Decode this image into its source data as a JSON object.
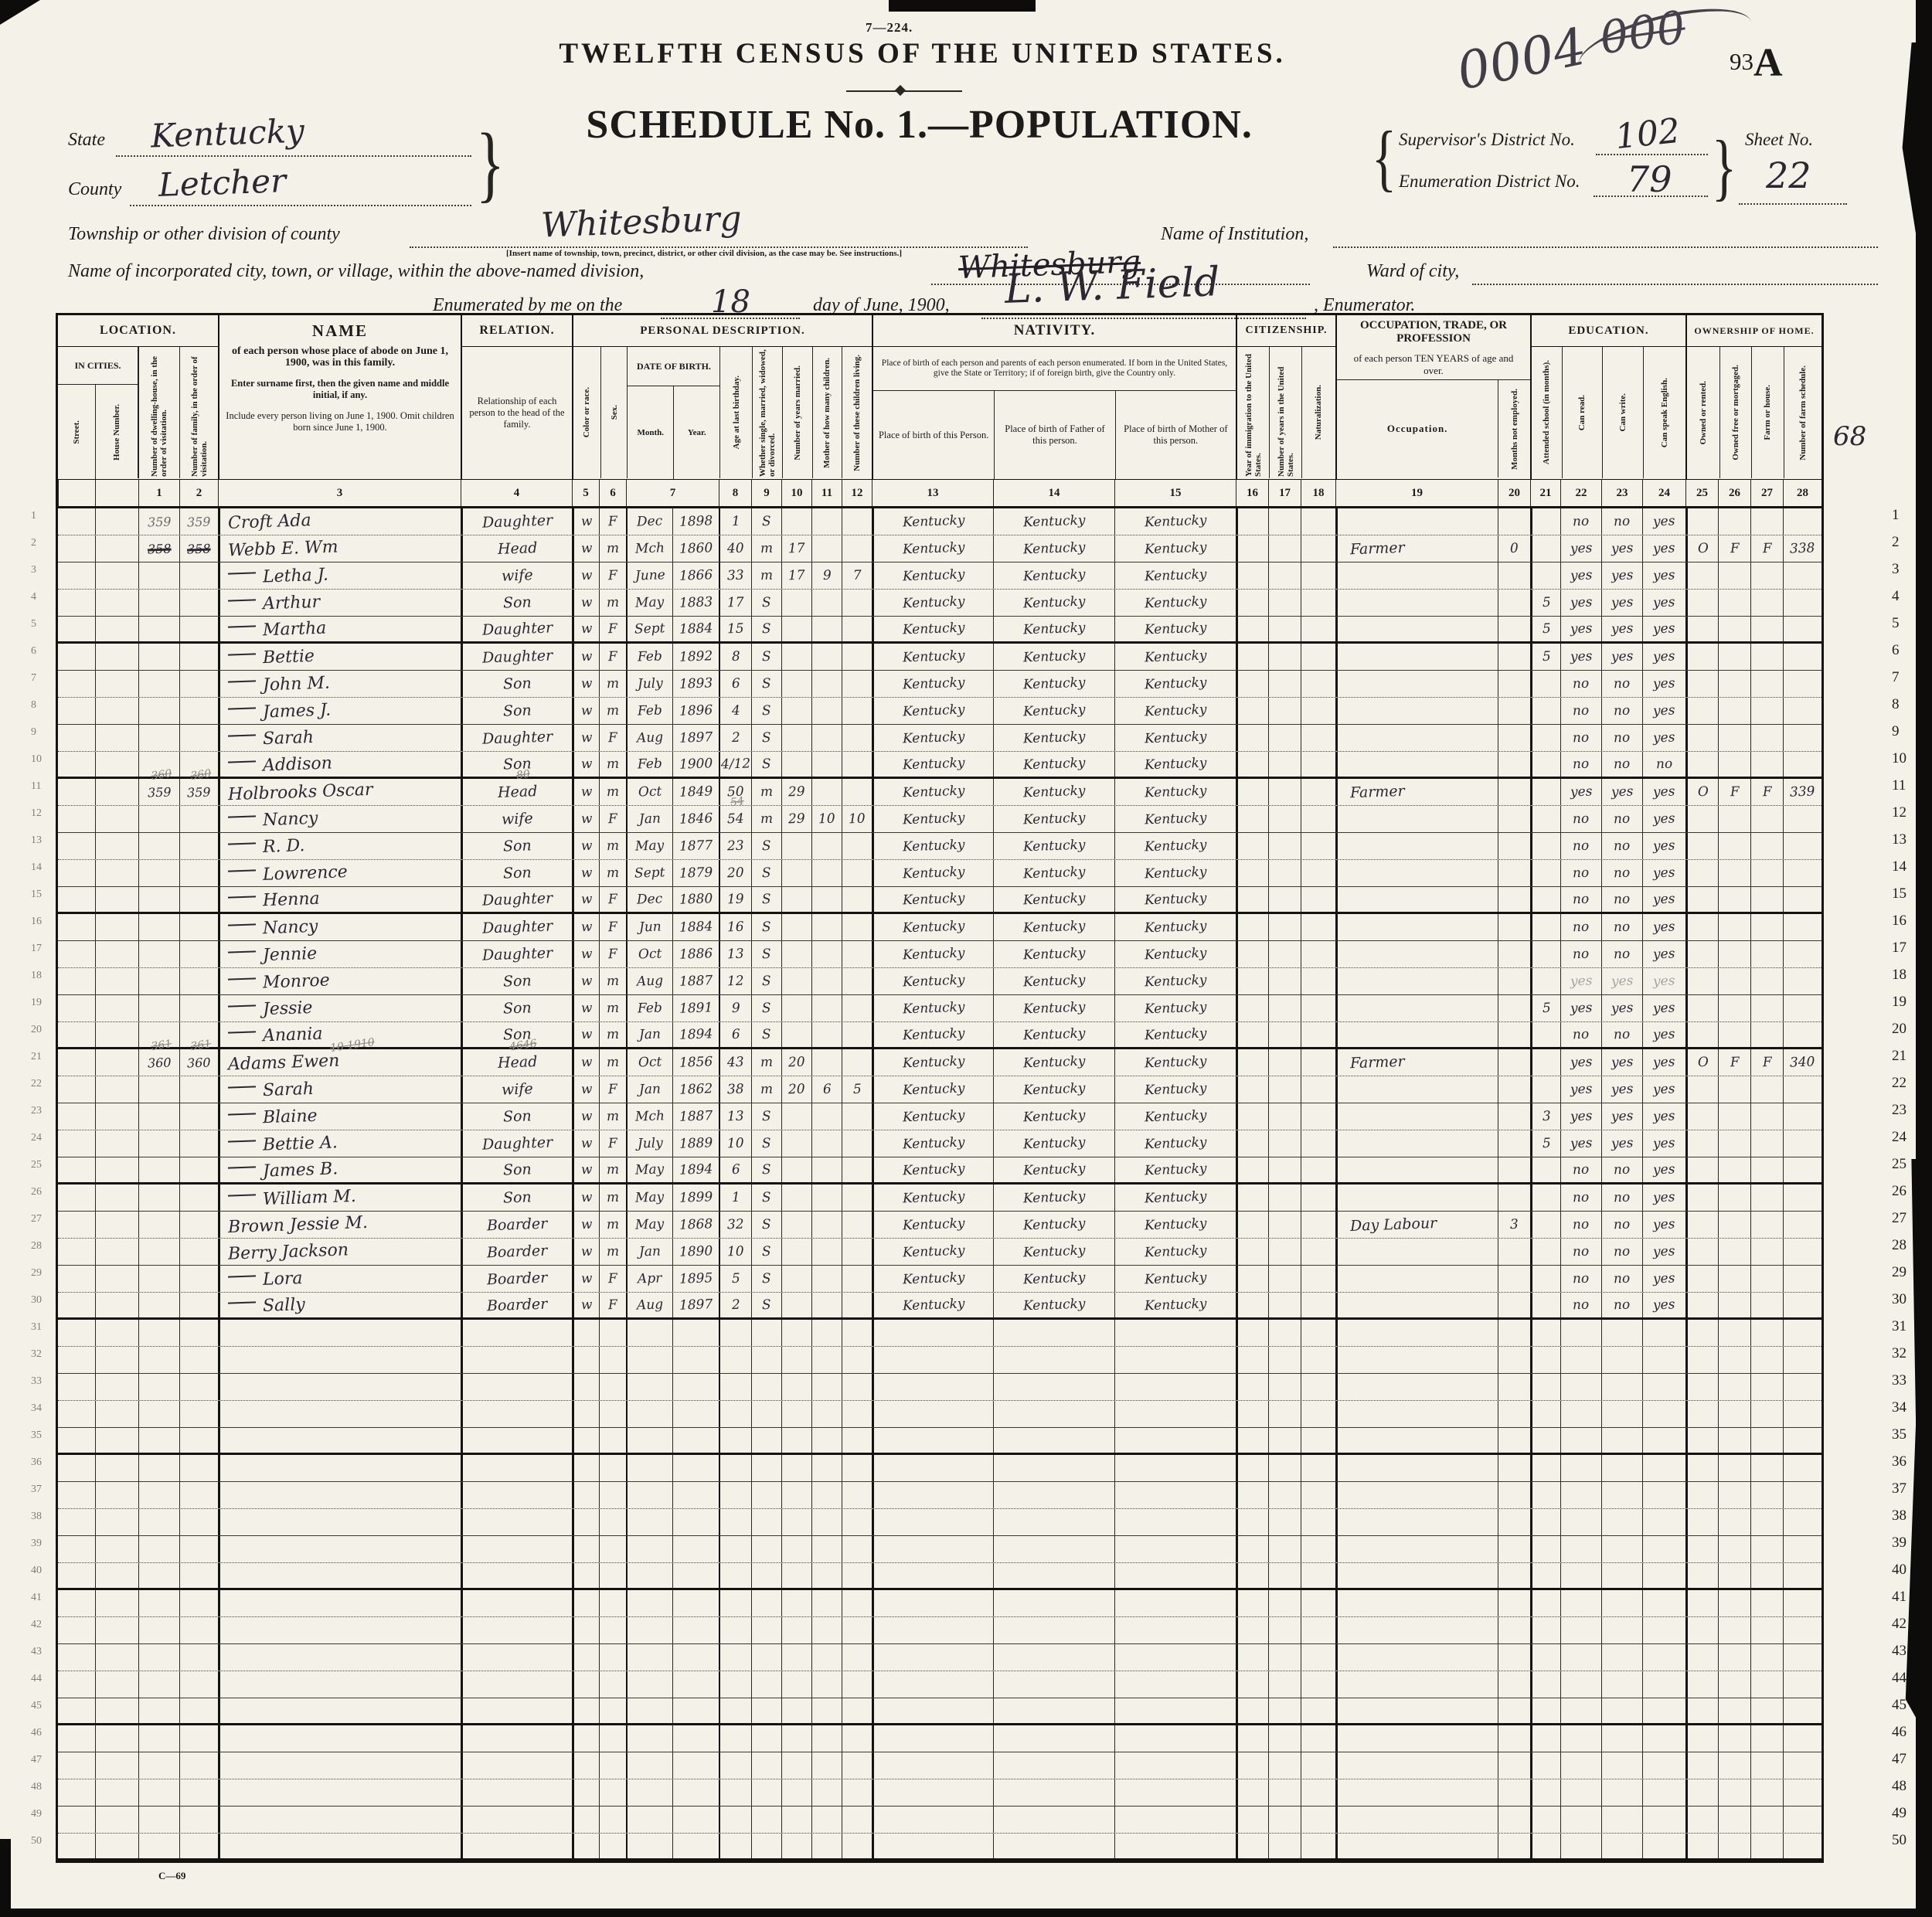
{
  "form": {
    "form_number": "7—224.",
    "title": "TWELFTH CENSUS OF THE UNITED STATES.",
    "schedule_title": "SCHEDULE No. 1.—POPULATION.",
    "stamp": "0004",
    "stamp_crossed": "000",
    "page_number_small": "93",
    "page_number_large": "A",
    "supervisor_label": "Supervisor's District No.",
    "supervisor_value": "102",
    "sheet_label": "Sheet No.",
    "sheet_value": "22",
    "enum_district_label": "Enumeration District No.",
    "enum_district_value": "79",
    "state_label": "State",
    "state_value": "Kentucky",
    "county_label": "County",
    "county_value": "Letcher",
    "township_label": "Township or other division of county",
    "township_value": "Whitesburg",
    "township_note": "[Insert name of township, town, precinct, district, or other civil division, as the case may be.  See instructions.]",
    "institution_label": "Name of Institution,",
    "city_label": "Name of incorporated city, town, or village, within the above-named division,",
    "city_value": "Whitesburg",
    "ward_label": "Ward of city,",
    "enumerated_prefix": "Enumerated by me on the",
    "enumerated_day": "18",
    "enumerated_mid": "day of June, 1900,",
    "enumerator_sig": "L. W. Field",
    "enumerator_suffix": ", Enumerator.",
    "farm_margin_note": "68",
    "footer_mark": "C—69",
    "row_count": 50
  },
  "header": {
    "location_title": "LOCATION.",
    "in_cities": "IN CITIES.",
    "street": "Street.",
    "house": "House Number.",
    "dw": "Number of dwelling-house, in the order of visitation.",
    "fam": "Number of family, in the order of visitation.",
    "name_title": "NAME",
    "name_sub": "of each person whose place of abode on June 1, 1900, was in this family.",
    "name_note1": "Enter surname first, then the given name and middle initial, if any.",
    "name_note2": "Include every person living on June 1, 1900.  Omit children born since June 1, 1900.",
    "relation_title": "RELATION.",
    "relation_sub": "Relationship of each person to the head of the family.",
    "personal_title": "PERSONAL DESCRIPTION.",
    "race": "Color or race.",
    "sex": "Sex.",
    "dob": "DATE OF BIRTH.",
    "month": "Month.",
    "year": "Year.",
    "age": "Age at last birthday.",
    "marital": "Whether single, married, widowed, or divorced.",
    "yrs_married": "Number of years married.",
    "mother_of": "Mother of how many children.",
    "children_living": "Number of these children living.",
    "nativity_title": "NATIVITY.",
    "nativity_sub": "Place of birth of each person and parents of each person enumerated.  If born in the United States, give the State or Territory; if of foreign birth, give the Country only.",
    "pob": "Place of birth of this Person.",
    "pobf": "Place of birth of Father of this person.",
    "pobm": "Place of birth of Mother of this person.",
    "citizenship_title": "CITIZENSHIP.",
    "imm": "Year of immigration to the United States.",
    "yrs_us": "Number of years in the United States.",
    "nat": "Naturalization.",
    "occupation_title": "OCCUPATION, TRADE, OR PROFESSION",
    "occupation_sub": "of each person TEN YEARS of age and over.",
    "occ": "Occupation.",
    "months_not": "Months not employed.",
    "education_title": "EDUCATION.",
    "school": "Attended school (in months).",
    "read": "Can read.",
    "write": "Can write.",
    "speak": "Can speak English.",
    "ownership_title": "OWNERSHIP OF HOME.",
    "owned": "Owned or rented.",
    "free": "Owned free or mortgaged.",
    "farm": "Farm or house.",
    "sched": "Number of farm schedule.",
    "col_numbers": [
      "1",
      "2",
      "3",
      "4",
      "5",
      "6",
      "7",
      "8",
      "9",
      "10",
      "11",
      "12",
      "13",
      "14",
      "15",
      "16",
      "17",
      "18",
      "19",
      "20",
      "21",
      "22",
      "23",
      "24",
      "25",
      "26",
      "27",
      "28"
    ]
  },
  "rows": [
    {
      "dw": "359",
      "dw_pencil": true,
      "fam": "359",
      "fam_pencil": true,
      "name": "Croft Ada",
      "rel": "Daughter",
      "race": "w",
      "sex": "F",
      "month": "Dec",
      "year": "1898",
      "age": "1",
      "mar": "S",
      "pob": "Kentucky",
      "pobf": "Kentucky",
      "pobm": "Kentucky",
      "read": "no",
      "write": "no",
      "speak": "yes"
    },
    {
      "dw": "358",
      "dw_struck": true,
      "fam": "358",
      "fam_struck": true,
      "name": "Webb E. Wm",
      "rel": "Head",
      "race": "w",
      "sex": "m",
      "month": "Mch",
      "year": "1860",
      "age": "40",
      "mar": "m",
      "yrsm": "17",
      "pob": "Kentucky",
      "pobf": "Kentucky",
      "pobm": "Kentucky",
      "occ": "Farmer",
      "mne": "0",
      "read": "yes",
      "write": "yes",
      "speak": "yes",
      "own": "O",
      "free": "F",
      "farm": "F",
      "sched": "338"
    },
    {
      "dash": true,
      "name": "Letha J.",
      "rel": "wife",
      "race": "w",
      "sex": "F",
      "month": "June",
      "year": "1866",
      "age": "33",
      "mar": "m",
      "yrsm": "17",
      "mother": "9",
      "living": "7",
      "pob": "Kentucky",
      "pobf": "Kentucky",
      "pobm": "Kentucky",
      "read": "yes",
      "write": "yes",
      "speak": "yes"
    },
    {
      "dash": true,
      "name": "Arthur",
      "rel": "Son",
      "race": "w",
      "sex": "m",
      "month": "May",
      "year": "1883",
      "age": "17",
      "mar": "S",
      "pob": "Kentucky",
      "pobf": "Kentucky",
      "pobm": "Kentucky",
      "school": "5",
      "read": "yes",
      "write": "yes",
      "speak": "yes"
    },
    {
      "dash": true,
      "name": "Martha",
      "rel": "Daughter",
      "race": "w",
      "sex": "F",
      "month": "Sept",
      "year": "1884",
      "age": "15",
      "mar": "S",
      "pob": "Kentucky",
      "pobf": "Kentucky",
      "pobm": "Kentucky",
      "school": "5",
      "read": "yes",
      "write": "yes",
      "speak": "yes"
    },
    {
      "dash": true,
      "name": "Bettie",
      "rel": "Daughter",
      "race": "w",
      "sex": "F",
      "month": "Feb",
      "year": "1892",
      "age": "8",
      "mar": "S",
      "pob": "Kentucky",
      "pobf": "Kentucky",
      "pobm": "Kentucky",
      "school": "5",
      "read": "yes",
      "write": "yes",
      "speak": "yes"
    },
    {
      "dash": true,
      "name": "John M.",
      "rel": "Son",
      "race": "w",
      "sex": "m",
      "month": "July",
      "year": "1893",
      "age": "6",
      "mar": "S",
      "pob": "Kentucky",
      "pobf": "Kentucky",
      "pobm": "Kentucky",
      "read": "no",
      "write": "no",
      "speak": "yes"
    },
    {
      "dash": true,
      "name": "James J.",
      "rel": "Son",
      "race": "w",
      "sex": "m",
      "month": "Feb",
      "year": "1896",
      "age": "4",
      "mar": "S",
      "pob": "Kentucky",
      "pobf": "Kentucky",
      "pobm": "Kentucky",
      "read": "no",
      "write": "no",
      "speak": "yes"
    },
    {
      "dash": true,
      "name": "Sarah",
      "rel": "Daughter",
      "race": "w",
      "sex": "F",
      "month": "Aug",
      "year": "1897",
      "age": "2",
      "mar": "S",
      "pob": "Kentucky",
      "pobf": "Kentucky",
      "pobm": "Kentucky",
      "read": "no",
      "write": "no",
      "speak": "yes"
    },
    {
      "dash": true,
      "name": "Addison",
      "rel": "Son",
      "race": "w",
      "sex": "m",
      "month": "Feb",
      "year": "1900",
      "age": "4/12",
      "mar": "S",
      "pob": "Kentucky",
      "pobf": "Kentucky",
      "pobm": "Kentucky",
      "read": "no",
      "write": "no",
      "speak": "no"
    },
    {
      "dw": "359",
      "dw_note": "360",
      "fam": "359",
      "fam_note": "360",
      "name": "Holbrooks Oscar",
      "rel": "Head",
      "rel_note": "80",
      "race": "w",
      "sex": "m",
      "month": "Oct",
      "year": "1849",
      "age": "50",
      "mar": "m",
      "yrsm": "29",
      "pob": "Kentucky",
      "pobf": "Kentucky",
      "pobm": "Kentucky",
      "occ": "Farmer",
      "read": "yes",
      "write": "yes",
      "speak": "yes",
      "own": "O",
      "free": "F",
      "farm": "F",
      "sched": "339"
    },
    {
      "dash": true,
      "name": "Nancy",
      "rel": "wife",
      "race": "w",
      "sex": "F",
      "month": "Jan",
      "year": "1846",
      "age": "54",
      "age_note": "54",
      "mar": "m",
      "yrsm": "29",
      "mother": "10",
      "living": "10",
      "pob": "Kentucky",
      "pobf": "Kentucky",
      "pobm": "Kentucky",
      "read": "no",
      "write": "no",
      "speak": "yes"
    },
    {
      "dash": true,
      "name": "R. D.",
      "rel": "Son",
      "race": "w",
      "sex": "m",
      "month": "May",
      "year": "1877",
      "age": "23",
      "mar": "S",
      "pob": "Kentucky",
      "pobf": "Kentucky",
      "pobm": "Kentucky",
      "read": "no",
      "write": "no",
      "speak": "yes"
    },
    {
      "dash": true,
      "name": "Lowrence",
      "rel": "Son",
      "race": "w",
      "sex": "m",
      "month": "Sept",
      "year": "1879",
      "age": "20",
      "mar": "S",
      "pob": "Kentucky",
      "pobf": "Kentucky",
      "pobm": "Kentucky",
      "read": "no",
      "write": "no",
      "speak": "yes"
    },
    {
      "dash": true,
      "name": "Henna",
      "rel": "Daughter",
      "race": "w",
      "sex": "F",
      "month": "Dec",
      "year": "1880",
      "age": "19",
      "mar": "S",
      "pob": "Kentucky",
      "pobf": "Kentucky",
      "pobm": "Kentucky",
      "read": "no",
      "write": "no",
      "speak": "yes"
    },
    {
      "dash": true,
      "name": "Nancy",
      "rel": "Daughter",
      "race": "w",
      "sex": "F",
      "month": "Jun",
      "year": "1884",
      "age": "16",
      "mar": "S",
      "pob": "Kentucky",
      "pobf": "Kentucky",
      "pobm": "Kentucky",
      "read": "no",
      "write": "no",
      "speak": "yes"
    },
    {
      "dash": true,
      "name": "Jennie",
      "rel": "Daughter",
      "race": "w",
      "sex": "F",
      "month": "Oct",
      "year": "1886",
      "age": "13",
      "mar": "S",
      "pob": "Kentucky",
      "pobf": "Kentucky",
      "pobm": "Kentucky",
      "read": "no",
      "write": "no",
      "speak": "yes"
    },
    {
      "dash": true,
      "name": "Monroe",
      "rel": "Son",
      "race": "w",
      "sex": "m",
      "month": "Aug",
      "year": "1887",
      "age": "12",
      "mar": "S",
      "pob": "Kentucky",
      "pobf": "Kentucky",
      "pobm": "Kentucky",
      "read": "yes",
      "read_faint": true,
      "write": "yes",
      "write_faint": true,
      "speak": "yes",
      "speak_faint": true
    },
    {
      "dash": true,
      "name": "Jessie",
      "rel": "Son",
      "race": "w",
      "sex": "m",
      "month": "Feb",
      "year": "1891",
      "age": "9",
      "mar": "S",
      "pob": "Kentucky",
      "pobf": "Kentucky",
      "pobm": "Kentucky",
      "school": "5",
      "read": "yes",
      "write": "yes",
      "speak": "yes"
    },
    {
      "dash": true,
      "name": "Anania",
      "rel": "Son",
      "race": "w",
      "sex": "m",
      "month": "Jan",
      "year": "1894",
      "age": "6",
      "mar": "S",
      "pob": "Kentucky",
      "pobf": "Kentucky",
      "pobm": "Kentucky",
      "read": "no",
      "write": "no",
      "speak": "yes"
    },
    {
      "dw": "360",
      "dw_note": "361",
      "fam": "360",
      "fam_note": "361",
      "name": "Adams Ewen",
      "name_note": "10 1910",
      "rel": "Head",
      "rel_note": "4646",
      "race": "w",
      "sex": "m",
      "month": "Oct",
      "year": "1856",
      "age": "43",
      "mar": "m",
      "yrsm": "20",
      "pob": "Kentucky",
      "pobf": "Kentucky",
      "pobm": "Kentucky",
      "occ": "Farmer",
      "read": "yes",
      "write": "yes",
      "speak": "yes",
      "own": "O",
      "free": "F",
      "farm": "F",
      "sched": "340"
    },
    {
      "dash": true,
      "name": "Sarah",
      "rel": "wife",
      "race": "w",
      "sex": "F",
      "month": "Jan",
      "year": "1862",
      "age": "38",
      "mar": "m",
      "yrsm": "20",
      "mother": "6",
      "living": "5",
      "pob": "Kentucky",
      "pobf": "Kentucky",
      "pobm": "Kentucky",
      "read": "yes",
      "write": "yes",
      "speak": "yes"
    },
    {
      "dash": true,
      "name": "Blaine",
      "rel": "Son",
      "race": "w",
      "sex": "m",
      "month": "Mch",
      "year": "1887",
      "age": "13",
      "mar": "S",
      "pob": "Kentucky",
      "pobf": "Kentucky",
      "pobm": "Kentucky",
      "school": "3",
      "read": "yes",
      "write": "yes",
      "speak": "yes"
    },
    {
      "dash": true,
      "name": "Bettie A.",
      "rel": "Daughter",
      "race": "w",
      "sex": "F",
      "month": "July",
      "year": "1889",
      "age": "10",
      "mar": "S",
      "pob": "Kentucky",
      "pobf": "Kentucky",
      "pobm": "Kentucky",
      "school": "5",
      "read": "yes",
      "write": "yes",
      "speak": "yes"
    },
    {
      "dash": true,
      "name": "James B.",
      "rel": "Son",
      "race": "w",
      "sex": "m",
      "month": "May",
      "year": "1894",
      "age": "6",
      "mar": "S",
      "pob": "Kentucky",
      "pobf": "Kentucky",
      "pobm": "Kentucky",
      "read": "no",
      "write": "no",
      "speak": "yes"
    },
    {
      "dash": true,
      "name": "William M.",
      "rel": "Son",
      "race": "w",
      "sex": "m",
      "month": "May",
      "year": "1899",
      "age": "1",
      "mar": "S",
      "pob": "Kentucky",
      "pobf": "Kentucky",
      "pobm": "Kentucky",
      "read": "no",
      "write": "no",
      "speak": "yes"
    },
    {
      "name": "Brown Jessie M.",
      "rel": "Boarder",
      "race": "w",
      "sex": "m",
      "month": "May",
      "year": "1868",
      "age": "32",
      "mar": "S",
      "pob": "Kentucky",
      "pobf": "Kentucky",
      "pobm": "Kentucky",
      "occ": "Day Labour",
      "mne": "3",
      "read": "no",
      "write": "no",
      "speak": "yes"
    },
    {
      "name": "Berry Jackson",
      "rel": "Boarder",
      "race": "w",
      "sex": "m",
      "month": "Jan",
      "year": "1890",
      "age": "10",
      "mar": "S",
      "pob": "Kentucky",
      "pobf": "Kentucky",
      "pobm": "Kentucky",
      "read": "no",
      "write": "no",
      "speak": "yes"
    },
    {
      "dash": true,
      "name": "Lora",
      "rel": "Boarder",
      "race": "w",
      "sex": "F",
      "month": "Apr",
      "year": "1895",
      "age": "5",
      "mar": "S",
      "pob": "Kentucky",
      "pobf": "Kentucky",
      "pobm": "Kentucky",
      "read": "no",
      "write": "no",
      "speak": "yes"
    },
    {
      "dash": true,
      "name": "Sally",
      "rel": "Boarder",
      "race": "w",
      "sex": "F",
      "month": "Aug",
      "year": "1897",
      "age": "2",
      "mar": "S",
      "pob": "Kentucky",
      "pobf": "Kentucky",
      "pobm": "Kentucky",
      "read": "no",
      "write": "no",
      "speak": "yes"
    },
    {},
    {},
    {},
    {},
    {},
    {},
    {},
    {},
    {},
    {},
    {},
    {},
    {},
    {},
    {},
    {},
    {},
    {},
    {},
    {}
  ]
}
